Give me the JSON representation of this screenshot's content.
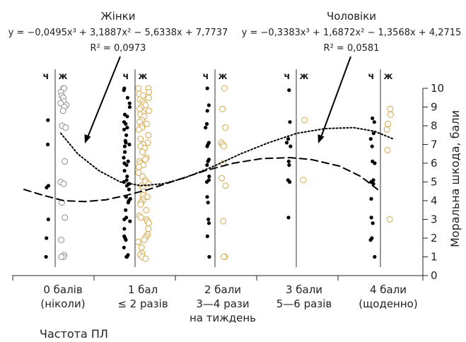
{
  "chart_data": {
    "type": "scatter",
    "series": [
      {
        "name": "Жінки",
        "group_label": "ж",
        "equation": "y = −0,0495x³ + 3,1887x² − 5,6338x + 7,7737",
        "r2": "R² = 0,0973",
        "coefficients": [
          -0.0495,
          3.1887,
          -5.6338,
          7.7737
        ],
        "fit_line": "dotted",
        "points": [
          [
            0,
            10
          ],
          [
            0,
            10
          ],
          [
            0,
            9.8
          ],
          [
            0,
            9.6
          ],
          [
            0,
            9.5
          ],
          [
            0,
            9.3
          ],
          [
            0,
            9.2
          ],
          [
            0,
            9.1
          ],
          [
            0,
            9
          ],
          [
            0,
            8.8
          ],
          [
            0,
            8
          ],
          [
            0,
            7.9
          ],
          [
            0,
            6.1
          ],
          [
            0,
            5
          ],
          [
            0,
            4.9
          ],
          [
            0,
            3.9
          ],
          [
            0,
            3.1
          ],
          [
            0,
            1.9
          ],
          [
            0,
            1.1
          ],
          [
            0,
            1
          ],
          [
            0,
            1
          ],
          [
            1,
            10
          ],
          [
            1,
            10
          ],
          [
            1,
            9.8
          ],
          [
            1,
            9.7
          ],
          [
            1,
            9.6
          ],
          [
            1,
            9.5
          ],
          [
            1,
            9.4
          ],
          [
            1,
            9.3
          ],
          [
            1,
            9.2
          ],
          [
            1,
            9.1
          ],
          [
            1,
            9
          ],
          [
            1,
            8.9
          ],
          [
            1,
            8.8
          ],
          [
            1,
            8.7
          ],
          [
            1,
            8.6
          ],
          [
            1,
            8.5
          ],
          [
            1,
            8.3
          ],
          [
            1,
            8.2
          ],
          [
            1,
            8.1
          ],
          [
            1,
            8
          ],
          [
            1,
            7.9
          ],
          [
            1,
            7.8
          ],
          [
            1,
            7.5
          ],
          [
            1,
            7.3
          ],
          [
            1,
            7.1
          ],
          [
            1,
            7
          ],
          [
            1,
            6.9
          ],
          [
            1,
            6.8
          ],
          [
            1,
            6.6
          ],
          [
            1,
            6.3
          ],
          [
            1,
            6.2
          ],
          [
            1,
            6.1
          ],
          [
            1,
            6
          ],
          [
            1,
            5.9
          ],
          [
            1,
            5.8
          ],
          [
            1,
            5.5
          ],
          [
            1,
            5.3
          ],
          [
            1,
            5.1
          ],
          [
            1,
            5
          ],
          [
            1,
            4.9
          ],
          [
            1,
            4.8
          ],
          [
            1,
            4.7
          ],
          [
            1,
            4.5
          ],
          [
            1,
            4.3
          ],
          [
            1,
            4.2
          ],
          [
            1,
            4.1
          ],
          [
            1,
            4
          ],
          [
            1,
            3.9
          ],
          [
            1,
            3.8
          ],
          [
            1,
            3.5
          ],
          [
            1,
            3.2
          ],
          [
            1,
            3.1
          ],
          [
            1,
            3
          ],
          [
            1,
            2.9
          ],
          [
            1,
            2.8
          ],
          [
            1,
            2.5
          ],
          [
            1,
            2.2
          ],
          [
            1,
            2.1
          ],
          [
            1,
            2
          ],
          [
            1,
            1.9
          ],
          [
            1,
            1.8
          ],
          [
            1,
            1.5
          ],
          [
            1,
            1.2
          ],
          [
            1,
            1.1
          ],
          [
            1,
            1
          ],
          [
            1,
            0.9
          ],
          [
            2,
            10
          ],
          [
            2,
            8.9
          ],
          [
            2,
            7.9
          ],
          [
            2,
            7.1
          ],
          [
            2,
            7
          ],
          [
            2,
            6.9
          ],
          [
            2,
            6
          ],
          [
            2,
            5.2
          ],
          [
            2,
            4.8
          ],
          [
            2,
            2.9
          ],
          [
            2,
            1
          ],
          [
            2,
            1
          ],
          [
            3,
            8.3
          ],
          [
            3,
            5.1
          ],
          [
            4,
            8.9
          ],
          [
            4,
            8.6
          ],
          [
            4,
            8.1
          ],
          [
            4,
            7.8
          ],
          [
            4,
            6.7
          ],
          [
            4,
            3
          ]
        ]
      },
      {
        "name": "Чоловіки",
        "group_label": "ч",
        "equation": "y = −0,3383x³ + 1,6872x² − 1,3568x + 4,2715",
        "r2": "R² = 0,0581",
        "coefficients": [
          -0.3383,
          1.6872,
          -1.3568,
          4.2715
        ],
        "fit_line": "dashed",
        "points": [
          [
            0,
            8.3
          ],
          [
            0,
            7
          ],
          [
            0,
            4.8
          ],
          [
            0,
            4.7
          ],
          [
            0,
            3
          ],
          [
            0,
            2
          ],
          [
            0,
            1
          ],
          [
            1,
            10
          ],
          [
            1,
            9.9
          ],
          [
            1,
            9.5
          ],
          [
            1,
            9.2
          ],
          [
            1,
            9
          ],
          [
            1,
            8.6
          ],
          [
            1,
            8.5
          ],
          [
            1,
            8.2
          ],
          [
            1,
            8.1
          ],
          [
            1,
            7.9
          ],
          [
            1,
            7.8
          ],
          [
            1,
            7.5
          ],
          [
            1,
            7.2
          ],
          [
            1,
            7.1
          ],
          [
            1,
            7
          ],
          [
            1,
            6.9
          ],
          [
            1,
            6.6
          ],
          [
            1,
            6.3
          ],
          [
            1,
            6.1
          ],
          [
            1,
            6
          ],
          [
            1,
            5.9
          ],
          [
            1,
            5.6
          ],
          [
            1,
            5.3
          ],
          [
            1,
            5.1
          ],
          [
            1,
            5
          ],
          [
            1,
            4.9
          ],
          [
            1,
            4.8
          ],
          [
            1,
            4.6
          ],
          [
            1,
            4.2
          ],
          [
            1,
            4.1
          ],
          [
            1,
            4
          ],
          [
            1,
            3.9
          ],
          [
            1,
            3.5
          ],
          [
            1,
            3.1
          ],
          [
            1,
            3
          ],
          [
            1,
            2.9
          ],
          [
            1,
            2.5
          ],
          [
            1,
            2.1
          ],
          [
            1,
            2
          ],
          [
            1,
            1.9
          ],
          [
            1,
            1.5
          ],
          [
            1,
            1.1
          ],
          [
            1,
            1
          ],
          [
            1,
            1
          ],
          [
            2,
            10
          ],
          [
            2,
            9.1
          ],
          [
            2,
            8.8
          ],
          [
            2,
            8.1
          ],
          [
            2,
            7.9
          ],
          [
            2,
            7.1
          ],
          [
            2,
            7
          ],
          [
            2,
            6.9
          ],
          [
            2,
            6.2
          ],
          [
            2,
            6.1
          ],
          [
            2,
            5.9
          ],
          [
            2,
            5.3
          ],
          [
            2,
            5.1
          ],
          [
            2,
            5
          ],
          [
            2,
            4.2
          ],
          [
            2,
            3.9
          ],
          [
            2,
            3
          ],
          [
            2,
            2.8
          ],
          [
            2,
            2.1
          ],
          [
            2,
            1
          ],
          [
            3,
            9.9
          ],
          [
            3,
            8.2
          ],
          [
            3,
            7.3
          ],
          [
            3,
            7.1
          ],
          [
            3,
            6.9
          ],
          [
            3,
            6.1
          ],
          [
            3,
            5.9
          ],
          [
            3,
            5.1
          ],
          [
            3,
            5
          ],
          [
            3,
            5
          ],
          [
            3,
            3.1
          ],
          [
            4,
            8.4
          ],
          [
            4,
            8.2
          ],
          [
            4,
            7.6
          ],
          [
            4,
            7.3
          ],
          [
            4,
            6.9
          ],
          [
            4,
            6.1
          ],
          [
            4,
            6
          ],
          [
            4,
            5.1
          ],
          [
            4,
            5
          ],
          [
            4,
            4.9
          ],
          [
            4,
            4.1
          ],
          [
            4,
            3.1
          ],
          [
            4,
            2.8
          ],
          [
            4,
            2
          ],
          [
            4,
            1.9
          ],
          [
            4,
            1
          ]
        ]
      }
    ],
    "categories": [
      {
        "line1": "0 балів",
        "line2": "(ніколи)",
        "line3": ""
      },
      {
        "line1": "1 бал",
        "line2": "≤ 2 разів",
        "line3": ""
      },
      {
        "line1": "2 бали",
        "line2": "3—4 рази",
        "line3": "на тиждень"
      },
      {
        "line1": "3 бали",
        "line2": "5—6 разів",
        "line3": ""
      },
      {
        "line1": "4 бали",
        "line2": "(щоденно)",
        "line3": ""
      }
    ],
    "xlabel": "Частота ПЛ",
    "ylabel": "Моральна шкода, бали",
    "ylim": [
      0,
      10
    ],
    "yticks": [
      "0",
      "1",
      "2",
      "3",
      "4",
      "5",
      "6",
      "7",
      "8",
      "9",
      "10"
    ],
    "y_axis_side": "right",
    "grid": false,
    "legend": "annotations with arrows above the plot",
    "colors": {
      "men_fill": "#000000",
      "women_fill": "#ffffff",
      "women_stroke_low_categories": "#8c8c8c",
      "women_stroke_high_categories": "#d9a84a",
      "axis": "#222222",
      "fit_line": "#000000"
    }
  }
}
